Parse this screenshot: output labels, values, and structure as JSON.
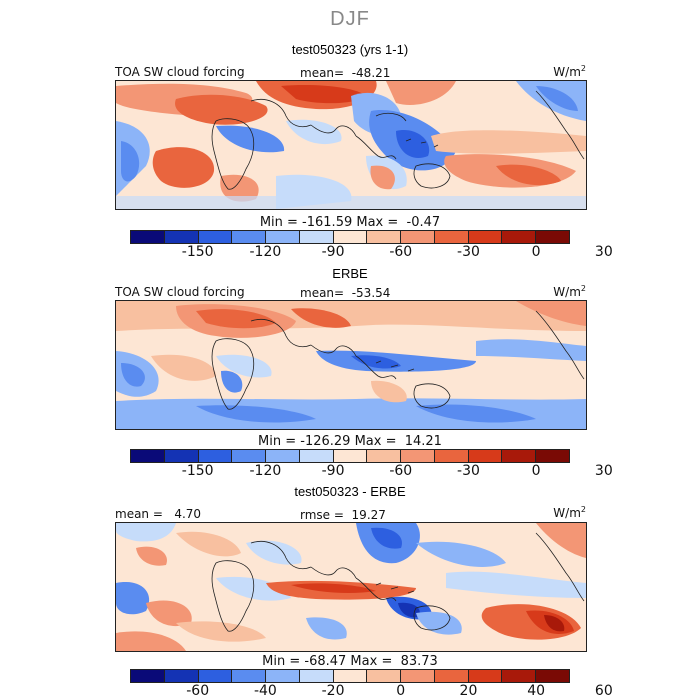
{
  "figure": {
    "title": "DJF"
  },
  "panels": [
    {
      "title": "test050323 (yrs 1-1)",
      "field_label": "TOA SW cloud forcing",
      "stat_text": "mean=  -48.21",
      "units": "W/m",
      "units_exp": "2",
      "min_max": "Min = -161.59 Max =  -0.47",
      "tick_labels": [
        "-150",
        "-120",
        "-90",
        "-60",
        "-30",
        "0",
        "30"
      ],
      "palette": [
        "#0a0a78",
        "#1433b4",
        "#2d5fe0",
        "#5a8cf0",
        "#8cb4f8",
        "#c6dcfa",
        "#fde6d4",
        "#f8c0a0",
        "#f39675",
        "#e9653e",
        "#d73a1a",
        "#a8190a",
        "#7a0a05"
      ]
    },
    {
      "title": "ERBE",
      "field_label": "TOA SW cloud forcing",
      "stat_text": "mean=  -53.54",
      "units": "W/m",
      "units_exp": "2",
      "min_max": "Min = -126.29 Max =  14.21",
      "tick_labels": [
        "-150",
        "-120",
        "-90",
        "-60",
        "-30",
        "0",
        "30"
      ],
      "palette": [
        "#0a0a78",
        "#1433b4",
        "#2d5fe0",
        "#5a8cf0",
        "#8cb4f8",
        "#c6dcfa",
        "#fde6d4",
        "#f8c0a0",
        "#f39675",
        "#e9653e",
        "#d73a1a",
        "#a8190a",
        "#7a0a05"
      ]
    },
    {
      "title": "test050323 - ERBE",
      "field_label": "mean =   4.70",
      "stat_text": "rmse =  19.27",
      "units": "W/m",
      "units_exp": "2",
      "min_max": "Min = -68.47 Max =  83.73",
      "tick_labels": [
        "-60",
        "-40",
        "-20",
        "0",
        "20",
        "40",
        "60"
      ],
      "palette": [
        "#0a0a78",
        "#1433b4",
        "#2d5fe0",
        "#5a8cf0",
        "#8cb4f8",
        "#c6dcfa",
        "#fde6d4",
        "#f8c0a0",
        "#f39675",
        "#e9653e",
        "#d73a1a",
        "#a8190a",
        "#7a0a05"
      ]
    }
  ]
}
